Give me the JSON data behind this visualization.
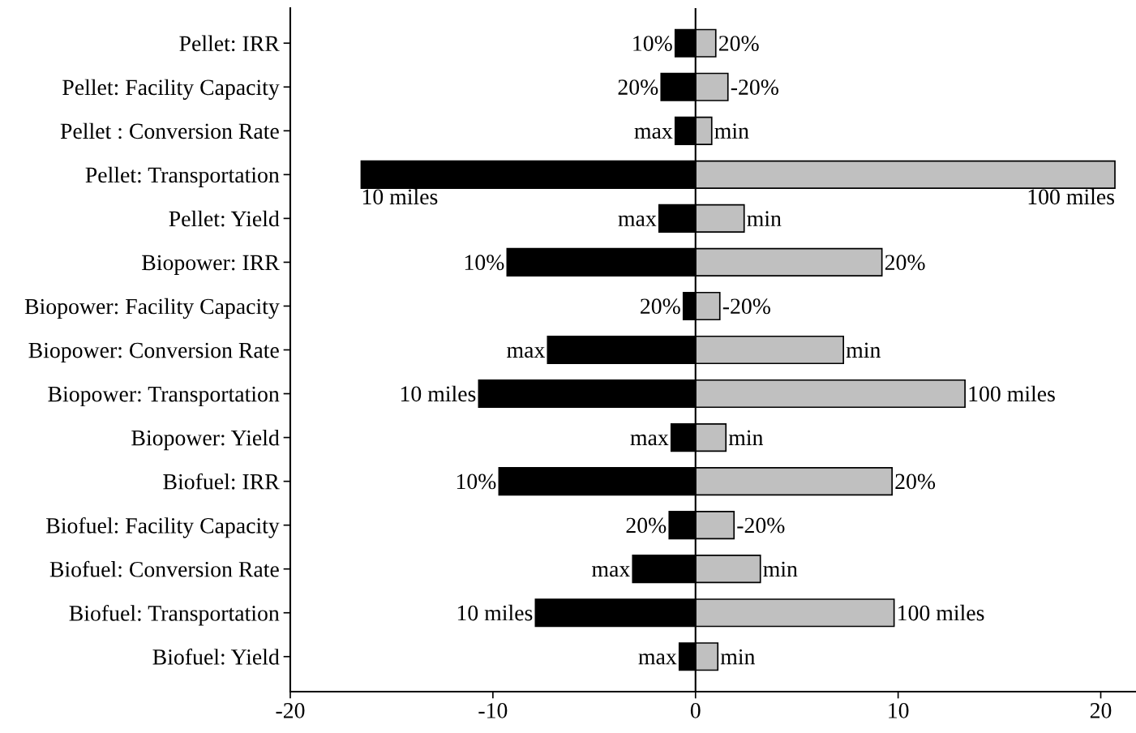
{
  "chart_data": {
    "type": "bar",
    "orientation": "horizontal",
    "categories": [
      "Pellet: IRR",
      "Pellet: Facility Capacity",
      "Pellet : Conversion Rate",
      "Pellet: Transportation",
      "Pellet: Yield",
      "Biopower: IRR",
      "Biopower: Facility Capacity",
      "Biopower: Conversion Rate",
      "Biopower: Transportation",
      "Biopower: Yield",
      "Biofuel: IRR",
      "Biofuel: Facility Capacity",
      "Biofuel: Conversion Rate",
      "Biofuel: Transportation",
      "Biofuel: Yield"
    ],
    "series": [
      {
        "color": "#000000",
        "values": [
          -1.0,
          -1.7,
          -1.0,
          -16.5,
          -1.8,
          -9.3,
          -0.6,
          -7.3,
          -10.7,
          -1.2,
          -9.7,
          -1.3,
          -3.1,
          -7.9,
          -0.8
        ]
      },
      {
        "color": "#c0c0c0",
        "values": [
          1.0,
          1.6,
          0.8,
          20.7,
          2.4,
          9.2,
          1.2,
          7.3,
          13.3,
          1.5,
          9.7,
          1.9,
          3.2,
          9.8,
          1.1
        ]
      }
    ],
    "annotations": [
      {
        "text": "10%",
        "x": -1.0,
        "y": "Pellet: IRR"
      },
      {
        "text": "20%",
        "x": -1.7,
        "y": "Pellet: Facility Capacity"
      },
      {
        "text": "max",
        "x": -1.0,
        "y": "Pellet : Conversion Rate"
      },
      {
        "text": "10 miles",
        "x": -16.5,
        "y": "Pellet: Transportation"
      },
      {
        "text": "max",
        "x": -1.8,
        "y": "Pellet: Yield"
      },
      {
        "text": "10%",
        "x": -9.3,
        "y": "Biopower: IRR"
      },
      {
        "text": "20%",
        "x": -0.6,
        "y": "Biopower: Facility Capacity"
      },
      {
        "text": "max",
        "x": -7.3,
        "y": "Biopower: Conversion Rate"
      },
      {
        "text": "10 miles",
        "x": -10.7,
        "y": "Biopower: Transportation"
      },
      {
        "text": "max",
        "x": -1.2,
        "y": "Biopower: Yield"
      },
      {
        "text": "10%",
        "x": -9.7,
        "y": "Biofuel: IRR"
      },
      {
        "text": "20%",
        "x": -1.3,
        "y": "Biofuel: Facility Capacity"
      },
      {
        "text": "max",
        "x": -3.1,
        "y": "Biofuel: Conversion Rate"
      },
      {
        "text": "10 miles",
        "x": -7.9,
        "y": "Biofuel: Transportation"
      },
      {
        "text": "max",
        "x": -0.8,
        "y": "Biofuel: Yield"
      },
      {
        "text": "20%",
        "x": 1.0,
        "y": "Pellet: IRR"
      },
      {
        "text": "-20%",
        "x": 1.6,
        "y": "Pellet: Facility Capacity"
      },
      {
        "text": "min",
        "x": 0.8,
        "y": "Pellet : Conversion Rate"
      },
      {
        "text": "100 miles",
        "x": 20.7,
        "y": "Pellet: Transportation"
      },
      {
        "text": "min",
        "x": 2.4,
        "y": "Pellet: Yield"
      },
      {
        "text": "20%",
        "x": 9.2,
        "y": "Biopower: IRR"
      },
      {
        "text": "-20%",
        "x": 1.2,
        "y": "Biopower: Facility Capacity"
      },
      {
        "text": "min",
        "x": 7.3,
        "y": "Biopower: Conversion Rate"
      },
      {
        "text": "100 miles",
        "x": 13.3,
        "y": "Biopower: Transportation"
      },
      {
        "text": "min",
        "x": 1.5,
        "y": "Biopower: Yield"
      },
      {
        "text": "20%",
        "x": 9.7,
        "y": "Biofuel: IRR"
      },
      {
        "text": "-20%",
        "x": 1.9,
        "y": "Biofuel: Facility Capacity"
      },
      {
        "text": "min",
        "x": 3.2,
        "y": "Biofuel: Conversion Rate"
      },
      {
        "text": "100 miles",
        "x": 9.8,
        "y": "Biofuel: Transportation"
      },
      {
        "text": "min",
        "x": 1.1,
        "y": "Biofuel: Yield"
      }
    ],
    "ref_lines": [
      {
        "axis": "x",
        "value": 0,
        "color": "#000000"
      }
    ],
    "xlim": [
      -20,
      21.7
    ],
    "xticks": [
      -20,
      -10,
      0,
      10,
      20
    ],
    "stacked": true,
    "grid": false,
    "legend": false
  }
}
